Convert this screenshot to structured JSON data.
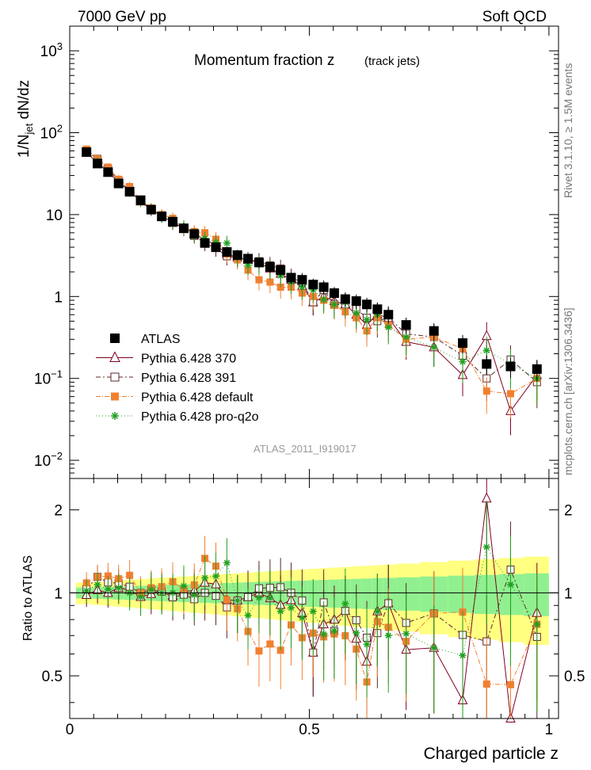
{
  "header": {
    "left": "7000 GeV pp",
    "right": "Soft QCD"
  },
  "title": {
    "main": "Momentum fraction z",
    "sub": "(track jets)"
  },
  "watermark": "ATLAS_2011_I919017",
  "side_labels": {
    "rivet": "Rivet 3.1.10, ≥ 1.5M events",
    "mcplots": "mcplots.cern.ch [arXiv:1306.3436]"
  },
  "axes": {
    "top_ylabel": "1/N_jet dN/dz",
    "ratio_ylabel": "Ratio to ATLAS",
    "xlabel": "Charged particle z",
    "x_ticks": [
      "0",
      "0.5",
      "1"
    ],
    "top_y_ticks": [
      "10^-2",
      "10^-1",
      "1",
      "10",
      "10^2",
      "10^3"
    ],
    "ratio_y_ticks": [
      "0.5",
      "1",
      "2"
    ]
  },
  "legend": {
    "entries": [
      {
        "label": "ATLAS",
        "marker": "filled-square",
        "color": "#000000"
      },
      {
        "label": "Pythia 6.428 370",
        "marker": "open-triangle",
        "color": "#800020"
      },
      {
        "label": "Pythia 6.428 391",
        "marker": "open-square",
        "color": "#5c2a2a"
      },
      {
        "label": "Pythia 6.428 default",
        "marker": "filled-square",
        "color": "#f08030"
      },
      {
        "label": "Pythia 6.428 pro-q2o",
        "marker": "star",
        "color": "#20a020"
      }
    ]
  },
  "colors": {
    "band_inner": "#90f090",
    "band_outer": "#ffff80"
  },
  "chart_data": {
    "type": "scatter",
    "x": [
      0.035,
      0.058,
      0.08,
      0.102,
      0.125,
      0.148,
      0.17,
      0.192,
      0.215,
      0.238,
      0.26,
      0.282,
      0.305,
      0.328,
      0.35,
      0.372,
      0.395,
      0.418,
      0.44,
      0.462,
      0.485,
      0.508,
      0.53,
      0.552,
      0.575,
      0.598,
      0.62,
      0.642,
      0.665,
      0.702,
      0.76,
      0.82,
      0.87,
      0.92,
      0.975
    ],
    "xlim": [
      0,
      1.02
    ],
    "ylim": [
      0.006,
      2000
    ],
    "yscale": "log",
    "ratio_ylim": [
      0.35,
      2.6
    ],
    "ratio_yscale": "log",
    "series": [
      {
        "name": "ATLAS",
        "values": [
          58,
          42,
          33,
          24,
          19,
          15,
          11.5,
          9.5,
          8.2,
          6.8,
          5.8,
          4.5,
          4.0,
          3.5,
          3.2,
          2.9,
          2.6,
          2.3,
          2.1,
          1.7,
          1.6,
          1.4,
          1.3,
          1.1,
          0.93,
          0.88,
          0.8,
          0.7,
          0.6,
          0.45,
          0.38,
          0.27,
          0.15,
          0.14,
          0.13
        ]
      },
      {
        "name": "Pythia 6.428 370",
        "values": [
          57,
          43,
          33,
          25,
          19.5,
          14.5,
          11.4,
          9.7,
          8.0,
          6.9,
          5.9,
          4.9,
          4.3,
          3.3,
          3.0,
          2.8,
          2.6,
          2.2,
          1.9,
          1.6,
          1.35,
          0.85,
          1.0,
          0.88,
          0.8,
          0.6,
          0.45,
          0.6,
          0.55,
          0.28,
          0.24,
          0.11,
          0.33,
          0.04,
          0.11
        ]
      },
      {
        "name": "Pythia 6.428 391",
        "values": [
          60,
          48,
          36,
          26,
          20,
          15,
          11.8,
          9.6,
          7.9,
          6.7,
          5.5,
          4.5,
          3.9,
          3.1,
          3.0,
          2.8,
          2.7,
          2.4,
          2.2,
          1.7,
          1.5,
          0.85,
          1.2,
          0.8,
          0.8,
          0.7,
          0.55,
          0.5,
          0.55,
          0.35,
          0.32,
          0.19,
          0.1,
          0.17,
          0.09
        ]
      },
      {
        "name": "Pythia 6.428 default",
        "values": [
          63,
          48,
          38,
          27,
          22,
          15,
          12,
          10,
          9.0,
          7.0,
          6.2,
          6.0,
          5.0,
          3.3,
          2.8,
          2.1,
          1.6,
          1.5,
          1.3,
          1.3,
          1.1,
          1.0,
          0.9,
          0.78,
          0.65,
          0.55,
          0.38,
          0.55,
          0.45,
          0.3,
          0.32,
          0.23,
          0.07,
          0.065,
          0.1
        ]
      },
      {
        "name": "Pythia 6.428 pro-q2o",
        "values": [
          59,
          45,
          34,
          25,
          19,
          14.5,
          11.8,
          9.5,
          8.2,
          7.2,
          5.7,
          5.1,
          4.6,
          4.5,
          3.0,
          2.4,
          2.5,
          2.2,
          1.8,
          1.5,
          1.3,
          1.2,
          0.92,
          0.8,
          0.85,
          0.63,
          0.52,
          0.6,
          0.42,
          0.32,
          0.24,
          0.16,
          0.22,
          0.15,
          0.1
        ]
      }
    ]
  }
}
